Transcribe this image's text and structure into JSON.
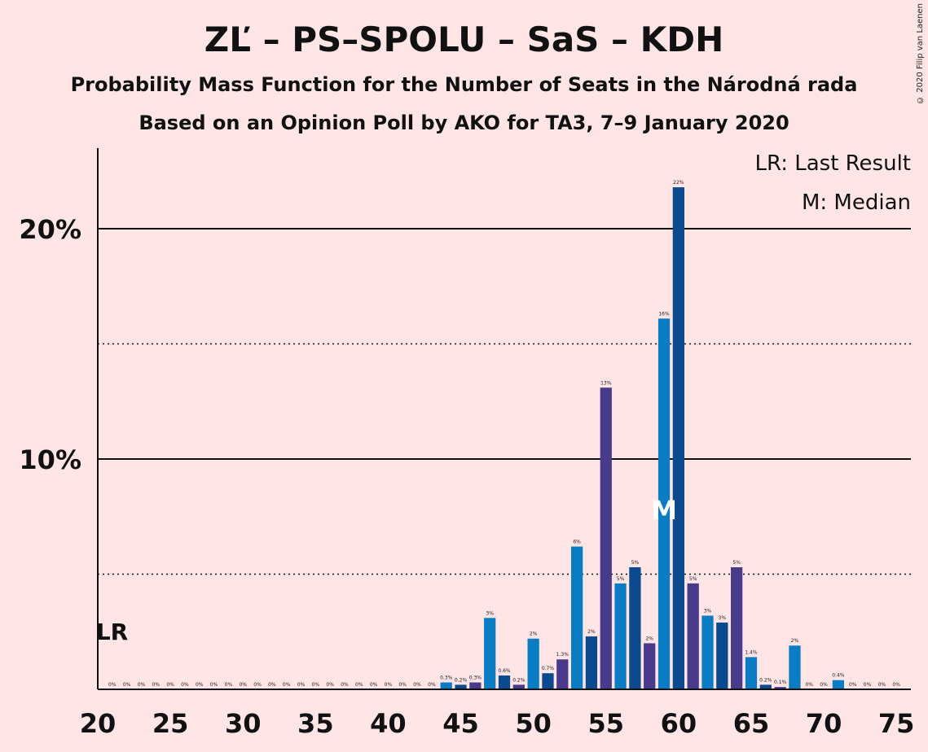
{
  "copyright": "© 2020 Filip van Laenen",
  "chart_data": {
    "type": "bar",
    "title": "ZĽ – PS–SPOLU – SaS – KDH",
    "subtitle": "Probability Mass Function for the Number of Seats in the Národná rada",
    "subtitle2": "Based on an Opinion Poll by AKO for TA3, 7–9 January 2020",
    "xlabel": "",
    "ylabel": "",
    "x": [
      21,
      22,
      23,
      24,
      25,
      26,
      27,
      28,
      29,
      30,
      31,
      32,
      33,
      34,
      35,
      36,
      37,
      38,
      39,
      40,
      41,
      42,
      43,
      44,
      45,
      46,
      47,
      48,
      49,
      50,
      51,
      52,
      53,
      54,
      55,
      56,
      57,
      58,
      59,
      60,
      61,
      62,
      63,
      64,
      65,
      66,
      67,
      68,
      69,
      70,
      71,
      72,
      73,
      74,
      75
    ],
    "values": [
      0,
      0,
      0,
      0,
      0,
      0,
      0,
      0,
      0,
      0,
      0,
      0,
      0,
      0,
      0,
      0,
      0,
      0,
      0,
      0,
      0,
      0,
      0,
      0.3,
      0.2,
      0.3,
      3.1,
      0.6,
      0.2,
      2.2,
      0.7,
      1.3,
      6.2,
      2.3,
      13.1,
      4.6,
      5.3,
      2.0,
      16.1,
      21.8,
      4.6,
      3.2,
      2.9,
      5.3,
      1.4,
      0.2,
      0.1,
      1.9,
      0,
      0,
      0.4,
      0,
      0,
      0,
      0
    ],
    "labels": [
      "0%",
      "0%",
      "0%",
      "0%",
      "0%",
      "0%",
      "0%",
      "0%",
      "0%",
      "0%",
      "0%",
      "0%",
      "0%",
      "0%",
      "0%",
      "0%",
      "0%",
      "0%",
      "0%",
      "0%",
      "0%",
      "0%",
      "0%",
      "0.3%",
      "0.2%",
      "0.3%",
      "3%",
      "0.6%",
      "0.2%",
      "2%",
      "0.7%",
      "1.3%",
      "6%",
      "2%",
      "13%",
      "5%",
      "5%",
      "2%",
      "16%",
      "22%",
      "5%",
      "3%",
      "3%",
      "5%",
      "1.4%",
      "0.2%",
      "0.1%",
      "2%",
      "0%",
      "0%",
      "0.4%",
      "0%",
      "0%",
      "0%",
      "0%"
    ],
    "x_ticks": [
      20,
      25,
      30,
      35,
      40,
      45,
      50,
      55,
      60,
      65,
      70,
      75
    ],
    "y_ticks": [
      {
        "value": 10,
        "label": "10%"
      },
      {
        "value": 20,
        "label": "20%"
      }
    ],
    "dotted_gridlines": [
      5,
      15
    ],
    "ylim": [
      0,
      23.5
    ],
    "xlim": [
      20,
      76
    ],
    "last_result_seat": 21,
    "last_result_label": "LR",
    "median_seat": 59,
    "median_label": "M",
    "legend": [
      "LR: Last Result",
      "M: Median"
    ],
    "colors": {
      "dark": "#0B4A8E",
      "purple": "#4A3A8C",
      "light": "#0A7CC4",
      "background": "#FFE5E5",
      "grid": "#111111"
    },
    "color_cycle": [
      "dark",
      "purple",
      "light"
    ]
  }
}
